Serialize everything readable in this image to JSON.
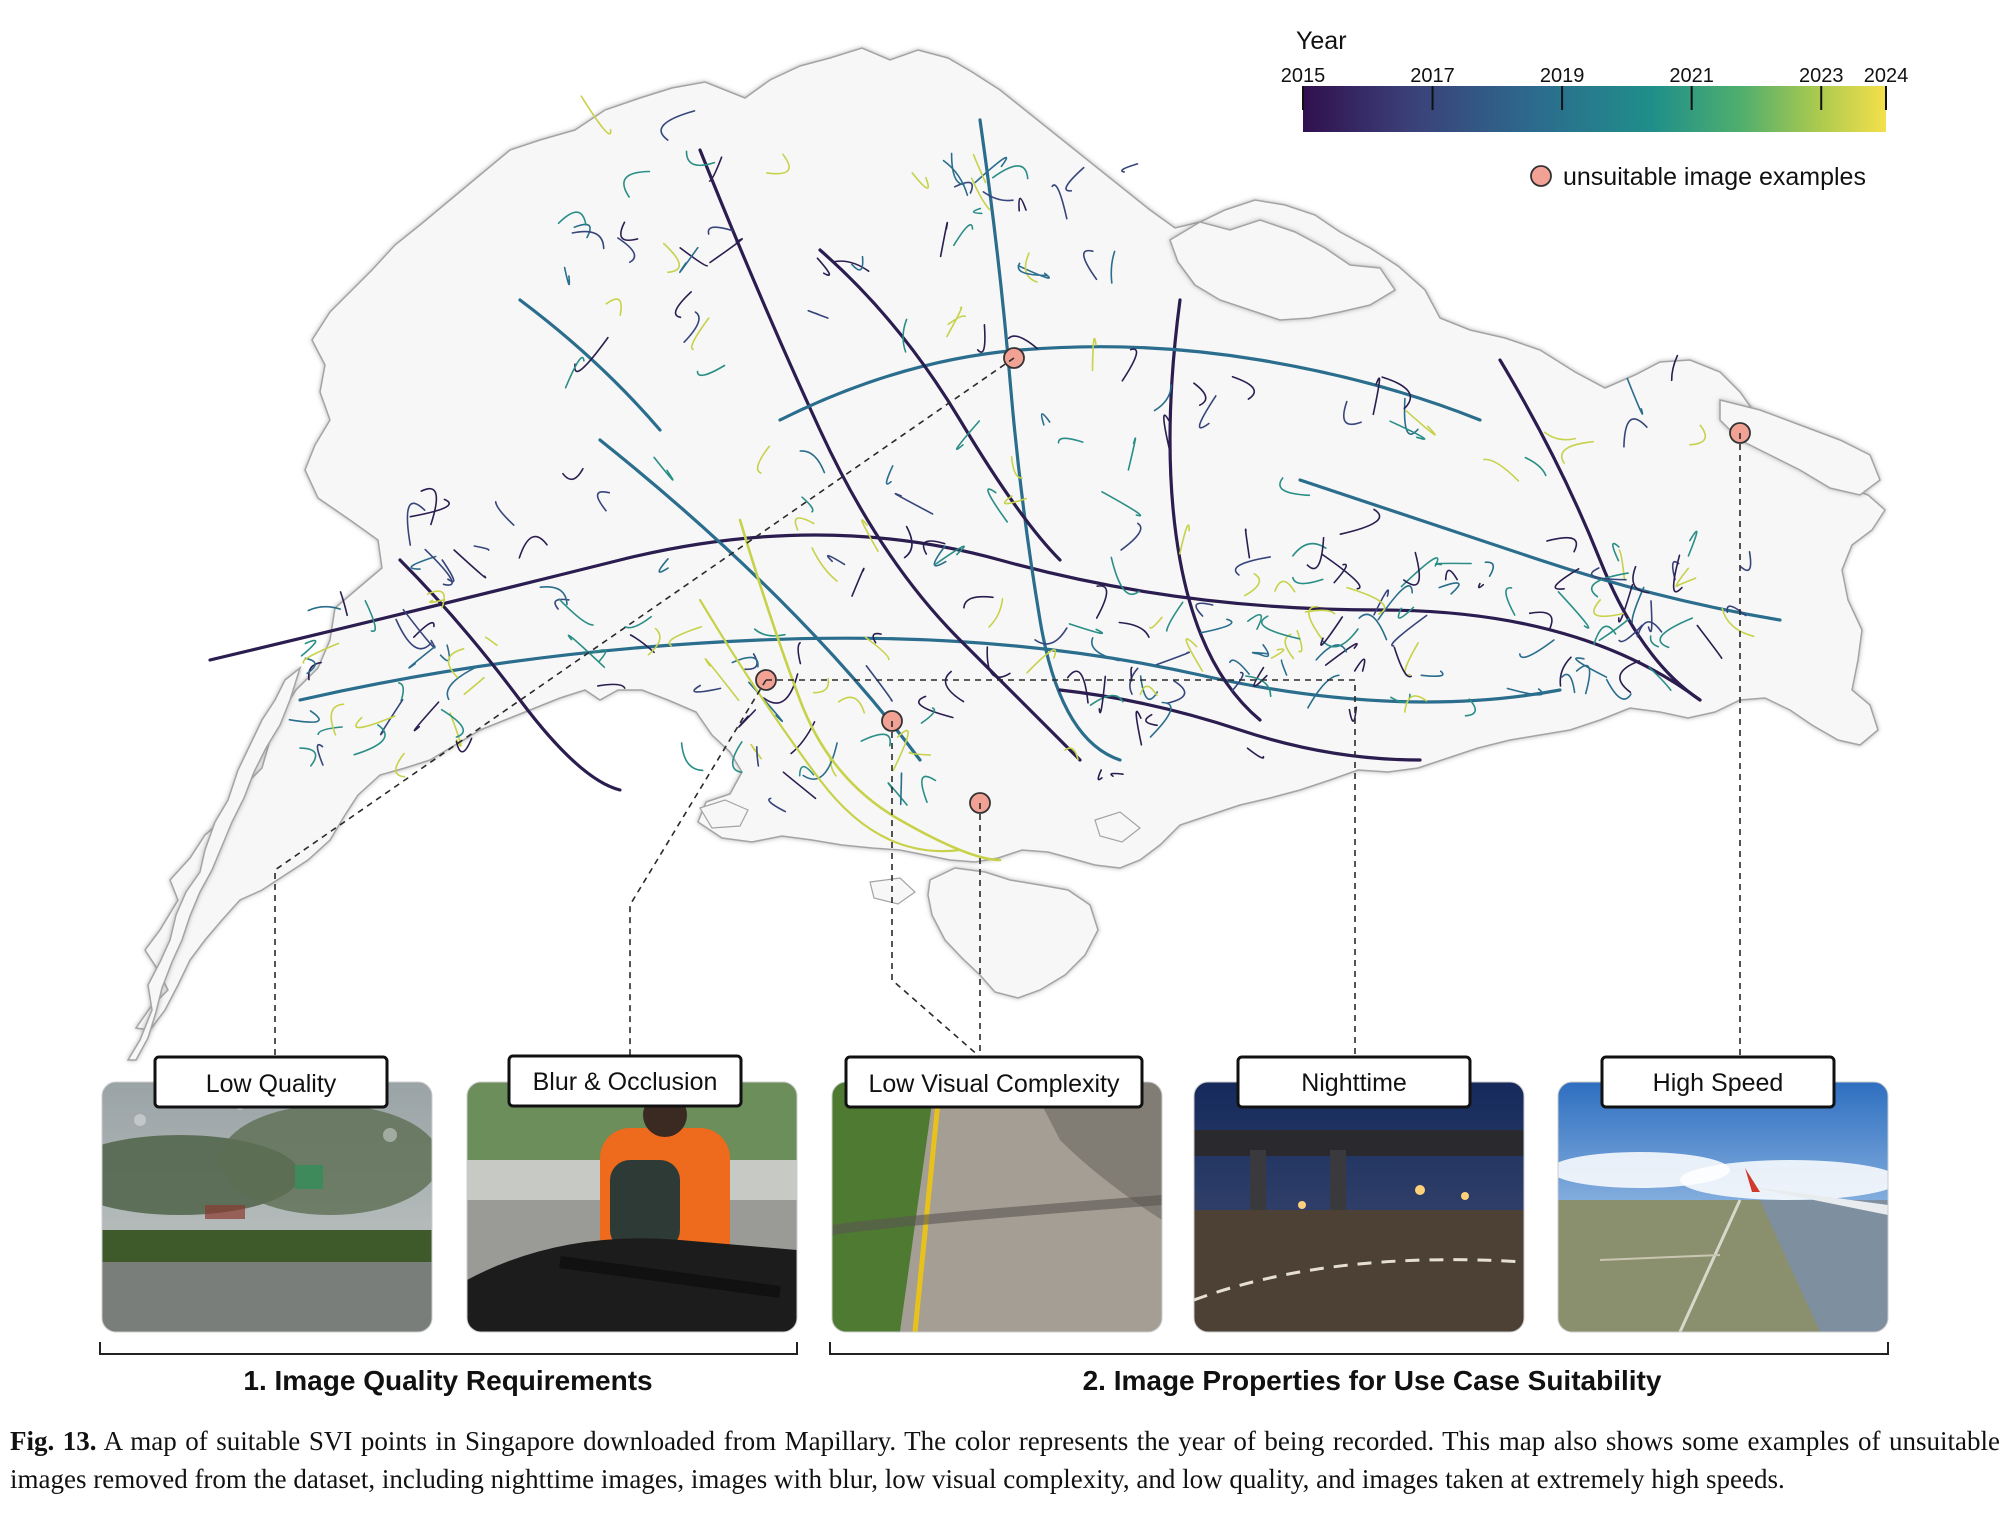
{
  "legend": {
    "title": "Year",
    "ticks": [
      "2015",
      "2017",
      "2019",
      "2021",
      "2023",
      "2024"
    ],
    "tick_years": [
      2015,
      2017,
      2019,
      2021,
      2023,
      2024
    ],
    "year_range": [
      2015,
      2024
    ],
    "colormap": [
      "#30104e",
      "#3b3f78",
      "#2c6b8e",
      "#1f8f8a",
      "#4fae6e",
      "#a9c94f",
      "#f4e04a"
    ],
    "marker_label": "unsuitable image examples",
    "marker_color": "#f2a294"
  },
  "map": {
    "land_color": "#f7f7f7",
    "coast_color": "#9a9a9a",
    "road_colors": [
      "#2b1d4f",
      "#36457a",
      "#2a6d8c",
      "#2a8e86",
      "#c7d24a"
    ]
  },
  "examples": [
    {
      "label": "Low Quality"
    },
    {
      "label": "Blur & Occlusion"
    },
    {
      "label": "Low Visual Complexity"
    },
    {
      "label": "Nighttime"
    },
    {
      "label": "High Speed"
    }
  ],
  "groups": [
    {
      "label": "1. Image Quality Requirements"
    },
    {
      "label": "2. Image Properties for Use Case Suitability"
    }
  ],
  "caption": {
    "label": "Fig. 13.",
    "text": "A map of suitable SVI points in Singapore downloaded from Mapillary. The color represents the year of being recorded. This map also shows some examples of unsuitable images removed from the dataset, including nighttime images, images with blur, low visual complexity, and low quality, and images taken at extremely high speeds."
  }
}
